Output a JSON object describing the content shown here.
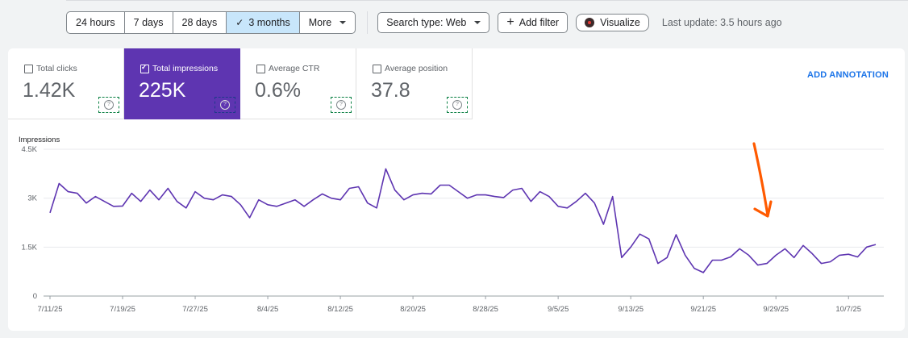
{
  "toolbar": {
    "ranges": [
      {
        "label": "24 hours",
        "active": false
      },
      {
        "label": "7 days",
        "active": false
      },
      {
        "label": "28 days",
        "active": false
      },
      {
        "label": "3 months",
        "active": true
      },
      {
        "label": "More",
        "active": false
      }
    ],
    "search_type": "Search type: Web",
    "add_filter": "Add filter",
    "visualize": "Visualize",
    "last_update": "Last update: 3.5 hours ago"
  },
  "metrics": [
    {
      "label": "Total clicks",
      "value": "1.42K",
      "selected": false
    },
    {
      "label": "Total impressions",
      "value": "225K",
      "selected": true
    },
    {
      "label": "Average CTR",
      "value": "0.6%",
      "selected": false
    },
    {
      "label": "Average position",
      "value": "37.8",
      "selected": false
    }
  ],
  "add_annotation": "ADD ANNOTATION",
  "colors": {
    "accent": "#5e35b1",
    "link": "#1a73e8",
    "line": "#5e35b1",
    "arrow": "#ff5a00"
  },
  "chart_data": {
    "type": "line",
    "ylabel": "Impressions",
    "ylim": [
      0,
      4500
    ],
    "yticks": [
      0,
      1500,
      3000,
      4500
    ],
    "ytick_labels": [
      "0",
      "1.5K",
      "3K",
      "4.5K"
    ],
    "x_start": "2025-07-11",
    "xticks": [
      0,
      8,
      16,
      24,
      32,
      40,
      48,
      56,
      64,
      72,
      80,
      88
    ],
    "xtick_labels": [
      "7/11/25",
      "7/19/25",
      "7/27/25",
      "8/4/25",
      "8/12/25",
      "8/20/25",
      "8/28/25",
      "9/5/25",
      "9/13/25",
      "9/21/25",
      "9/29/25",
      "10/7/25"
    ],
    "grid": true,
    "legend": "none",
    "series": [
      {
        "values": [
          2550,
          3450,
          3200,
          3150,
          2850,
          3050,
          2900,
          2750,
          2760,
          3150,
          2900,
          3250,
          2950,
          3300,
          2900,
          2700,
          3200,
          3000,
          2950,
          3100,
          3050,
          2800,
          2400,
          2950,
          2800,
          2750,
          2850,
          2950,
          2750,
          2950,
          3130,
          3000,
          2950,
          3300,
          3350,
          2850,
          2700,
          3900,
          3250,
          2950,
          3100,
          3150,
          3130,
          3400,
          3400,
          3200,
          3000,
          3100,
          3100,
          3050,
          3020,
          3250,
          3300,
          2900,
          3200,
          3050,
          2750,
          2700,
          2900,
          3150,
          2850,
          2200,
          3050,
          1180,
          1500,
          1900,
          1750,
          1000,
          1180,
          1880,
          1250,
          850,
          720,
          1100,
          1100,
          1200,
          1450,
          1250,
          950,
          1000,
          1250,
          1450,
          1180,
          1550,
          1300,
          1000,
          1050,
          1250,
          1280,
          1200,
          1500,
          1580
        ]
      }
    ]
  }
}
